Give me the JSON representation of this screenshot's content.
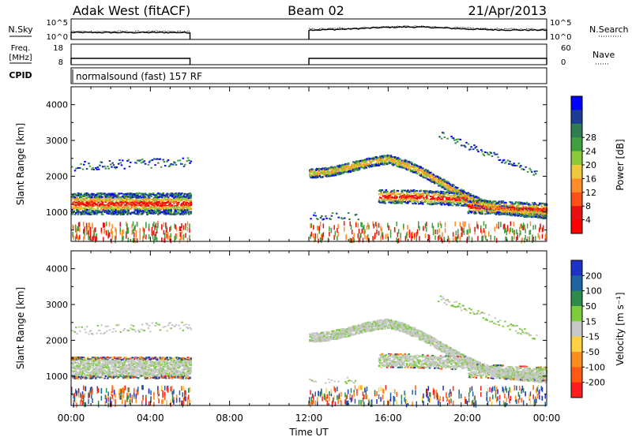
{
  "header": {
    "station": "Adak West (fitACF)",
    "beam": "Beam 02",
    "date": "21/Apr/2013"
  },
  "top_panels": {
    "nsky_label": "N.Sky",
    "nsky_tick_top": "10^5",
    "nsky_tick_bottom": "10^0",
    "nsearch_label": "N.Search",
    "nsearch_tick_top": "10^5",
    "nsearch_tick_bottom": "10^0",
    "freq_label_line1": "Freq.",
    "freq_label_line2": "[MHz]",
    "freq_tick_top": "18",
    "freq_tick_bottom": "8",
    "nave_label": "Nave",
    "nave_tick_top": "60",
    "nave_tick_bottom": "0",
    "cpid_label": "CPID",
    "cpid_text": "normalsound (fast) 157 RF"
  },
  "chart_data": [
    {
      "type": "heatmap",
      "panel": "power",
      "ylabel": "Slant Range [km]",
      "yticks": [
        1000,
        2000,
        3000,
        4000
      ],
      "ylim": [
        180,
        4500
      ],
      "xlim": [
        0,
        24
      ],
      "data_gap_hours": [
        6,
        12
      ],
      "colorbar_label": "Power [dB]",
      "colorbar_ticks": [
        "4",
        "8",
        "12",
        "16",
        "20",
        "24",
        "28"
      ],
      "colorbar_colors": [
        "#0000ff",
        "#1e3c96",
        "#2f7d50",
        "#40a040",
        "#8cc83c",
        "#f0c83c",
        "#ff8c28",
        "#ff5018",
        "#e81010",
        "#ff0000"
      ]
    },
    {
      "type": "heatmap",
      "panel": "velocity",
      "ylabel": "Slant Range [km]",
      "yticks": [
        1000,
        2000,
        3000,
        4000
      ],
      "ylim": [
        180,
        4500
      ],
      "xlim": [
        0,
        24
      ],
      "data_gap_hours": [
        6,
        12
      ],
      "colorbar_label": "Velocity [m s⁻¹]",
      "colorbar_ticks": [
        "200",
        "100",
        "50",
        "15",
        "-15",
        "-50",
        "-100",
        "-200"
      ],
      "colorbar_colors": [
        "#1e32c8",
        "#1e64a0",
        "#2e8c4a",
        "#7ccc3c",
        "#c8c8c8",
        "#ffd040",
        "#ff8c1e",
        "#ff5a14",
        "#ff1e1e"
      ]
    }
  ],
  "x_axis": {
    "ticks": [
      "00:00",
      "04:00",
      "08:00",
      "12:00",
      "16:00",
      "20:00",
      "00:00"
    ],
    "label": "Time UT"
  }
}
